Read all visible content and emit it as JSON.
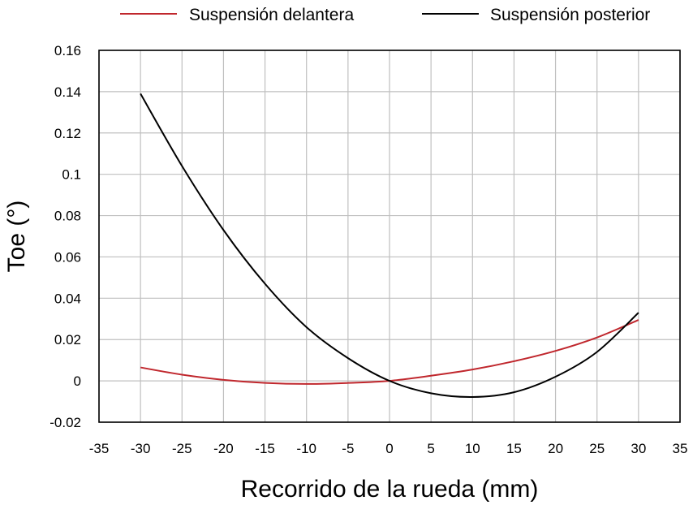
{
  "chart_data": {
    "type": "line",
    "title": "",
    "xlabel": "Recorrido de la rueda (mm)",
    "ylabel": "Toe (°)",
    "xlim": [
      -35,
      35
    ],
    "ylim": [
      -0.02,
      0.16
    ],
    "xticks": [
      -35,
      -30,
      -25,
      -20,
      -15,
      -10,
      -5,
      0,
      5,
      10,
      15,
      20,
      25,
      30,
      35
    ],
    "yticks": [
      -0.02,
      0,
      0.02,
      0.04,
      0.06,
      0.08,
      0.1,
      0.12,
      0.14,
      0.16
    ],
    "xtick_labels": [
      "-35",
      "-30",
      "-25",
      "-20",
      "-15",
      "-10",
      "-5",
      "0",
      "5",
      "10",
      "15",
      "20",
      "25",
      "30",
      "35"
    ],
    "ytick_labels": [
      "-0.02",
      "0",
      "0.02",
      "0.04",
      "0.06",
      "0.08",
      "0.1",
      "0.12",
      "0.14",
      "0.16"
    ],
    "grid": true,
    "legend_position": "top",
    "x": [
      -30,
      -25,
      -20,
      -15,
      -10,
      -5,
      0,
      5,
      10,
      15,
      20,
      25,
      30
    ],
    "series": [
      {
        "name": "Suspensión delantera",
        "color": "#c0272d",
        "values": [
          0.0065,
          0.003,
          0.0005,
          -0.001,
          -0.0015,
          -0.001,
          0.0,
          0.0025,
          0.0055,
          0.0095,
          0.0145,
          0.021,
          0.0295
        ]
      },
      {
        "name": "Suspensión posterior",
        "color": "#000000",
        "values": [
          0.139,
          0.104,
          0.073,
          0.047,
          0.026,
          0.011,
          0.0,
          -0.006,
          -0.0078,
          -0.0055,
          0.002,
          0.014,
          0.033
        ]
      }
    ]
  }
}
